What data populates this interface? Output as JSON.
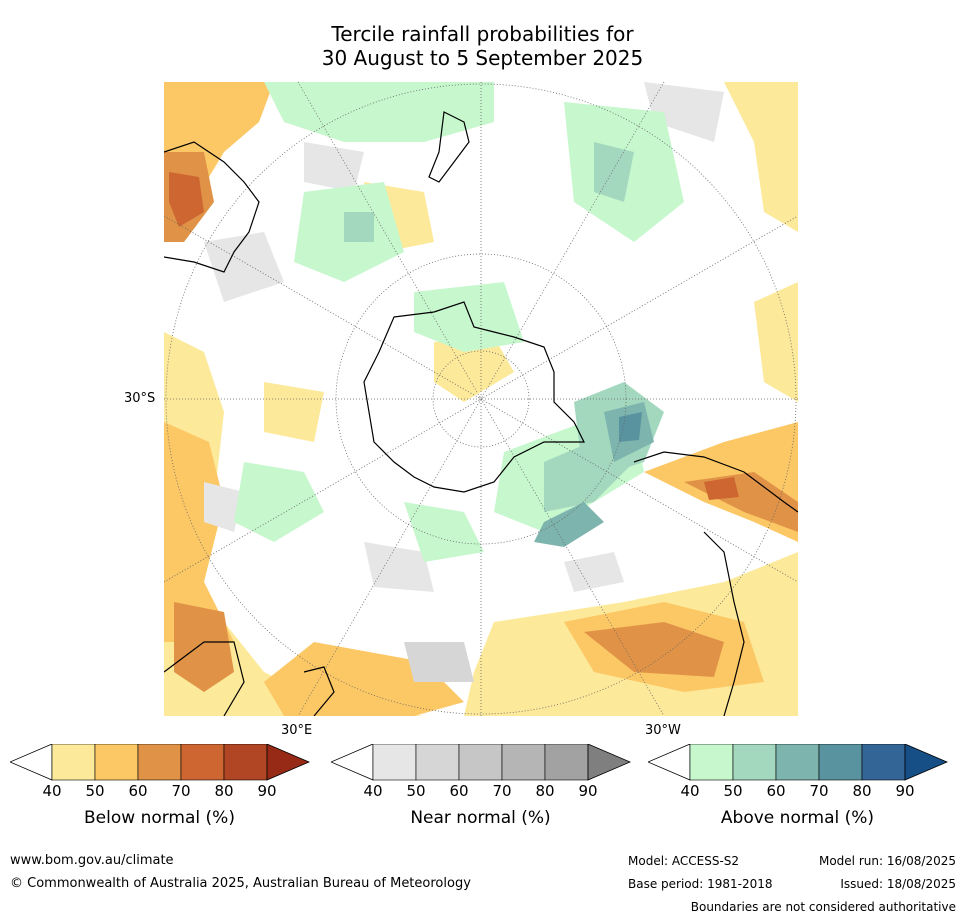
{
  "title_line1": "Tercile rainfall probabilities for",
  "title_line2": "30 August to 5 September 2025",
  "map": {
    "lat_label": "30°S",
    "lon_label_e": "30°E",
    "lon_label_w": "30°W",
    "colors": {
      "ocean_white": "#ffffff",
      "coast": "#000000",
      "grid": "#666666"
    }
  },
  "colorbars": [
    {
      "title": "Below normal (%)",
      "ticks": [
        "40",
        "50",
        "60",
        "70",
        "80",
        "90"
      ],
      "colors": [
        "#ffffff",
        "#fde99a",
        "#fcc865",
        "#e09347",
        "#cd6631",
        "#b04624",
        "#962a16"
      ]
    },
    {
      "title": "Near normal (%)",
      "ticks": [
        "40",
        "50",
        "60",
        "70",
        "80",
        "90"
      ],
      "colors": [
        "#ffffff",
        "#e6e6e6",
        "#d6d6d6",
        "#c6c6c6",
        "#b5b5b5",
        "#a2a2a2",
        "#7f7f7f"
      ]
    },
    {
      "title": "Above normal (%)",
      "ticks": [
        "40",
        "50",
        "60",
        "70",
        "80",
        "90"
      ],
      "colors": [
        "#ffffff",
        "#c6f7cd",
        "#a3d8bf",
        "#7db4ae",
        "#5a93a0",
        "#346597",
        "#164e86"
      ]
    }
  ],
  "footer": {
    "url": "www.bom.gov.au/climate",
    "copyright": "© Commonwealth of Australia 2025, Australian Bureau of Meteorology",
    "model": "Model: ACCESS-S2",
    "model_run": "Model run: 16/08/2025",
    "base_period": "Base period: 1981-2018",
    "issued": "Issued: 18/08/2025",
    "disclaimer": "Boundaries are not considered authoritative"
  }
}
